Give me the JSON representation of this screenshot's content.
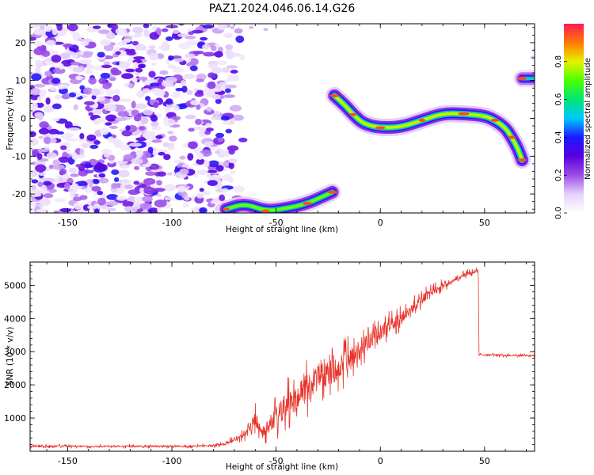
{
  "title": "PAZ1.2024.046.06.14.G26",
  "colors": {
    "snr_line": "#e8332a",
    "colormap": [
      "#ffffff",
      "#e6d2fa",
      "#9b4de8",
      "#5a00e0",
      "#1b1bff",
      "#00c8ff",
      "#00e676",
      "#4bff00",
      "#e8f000",
      "#ff7a00",
      "#ff1a55"
    ]
  },
  "chart_data": [
    {
      "type": "heatmap",
      "title": "PAZ1.2024.046.06.14.G26",
      "xlabel": "Height of straight line (km)",
      "ylabel": "Frequency (Hz)",
      "xlim": [
        -168,
        74
      ],
      "ylim": [
        -25,
        25
      ],
      "xticks": [
        -150,
        -100,
        -50,
        0,
        50
      ],
      "yticks": [
        -20,
        -10,
        0,
        10,
        20
      ],
      "colorbar": {
        "label": "Normalized spectral amplitude",
        "range": [
          0,
          1
        ],
        "ticks": [
          "0.0",
          "0.2",
          "0.4",
          "0.6",
          "0.8"
        ]
      },
      "noise_region": {
        "x_range": [
          -168,
          -70
        ],
        "y_range": [
          -25,
          25
        ],
        "amplitude_range": [
          0.05,
          0.4
        ]
      },
      "ridges": [
        {
          "x": [
            -74,
            -65,
            -55,
            -45,
            -35,
            -27,
            -23
          ],
          "y": [
            -24,
            -22.5,
            -24.5,
            -23.8,
            -22.5,
            -20.5,
            -19.5
          ],
          "amplitude": 0.85
        },
        {
          "x": [
            -22,
            -17,
            -13,
            -8,
            0,
            10,
            20,
            30,
            40,
            50,
            55,
            60,
            63,
            66,
            68
          ],
          "y": [
            6,
            3.5,
            1,
            -1.5,
            -2.5,
            -2.3,
            -0.5,
            1.3,
            1.2,
            0.7,
            -0.5,
            -2.5,
            -5,
            -8,
            -11
          ],
          "amplitude": 0.92
        },
        {
          "x": [
            68,
            74
          ],
          "y": [
            10.5,
            10.5
          ],
          "amplitude": 0.65
        }
      ]
    },
    {
      "type": "line",
      "xlabel": "Height of straight line (km)",
      "ylabel": "SNR (10 * v/v)",
      "xlim": [
        -168,
        74
      ],
      "ylim": [
        0,
        5700
      ],
      "xticks": [
        -150,
        -100,
        -50,
        0,
        50
      ],
      "yticks": [
        1000,
        2000,
        3000,
        4000,
        5000
      ],
      "series": [
        {
          "x": [
            -168,
            -150,
            -120,
            -90,
            -75,
            -65,
            -60,
            -57,
            -53,
            -48,
            -42,
            -37,
            -30,
            -20,
            -10,
            0,
            10,
            20,
            30,
            40,
            47,
            47.3,
            55,
            65,
            74
          ],
          "y": [
            150,
            150,
            150,
            150,
            200,
            500,
            1000,
            550,
            800,
            1200,
            1500,
            1800,
            2200,
            2500,
            3000,
            3600,
            4000,
            4600,
            5000,
            5300,
            5450,
            2900,
            2900,
            2880,
            2880
          ],
          "noise": [
            60,
            60,
            60,
            60,
            80,
            250,
            450,
            350,
            600,
            800,
            900,
            950,
            900,
            800,
            700,
            500,
            400,
            300,
            200,
            150,
            100,
            60,
            60,
            60,
            60
          ]
        }
      ]
    }
  ]
}
